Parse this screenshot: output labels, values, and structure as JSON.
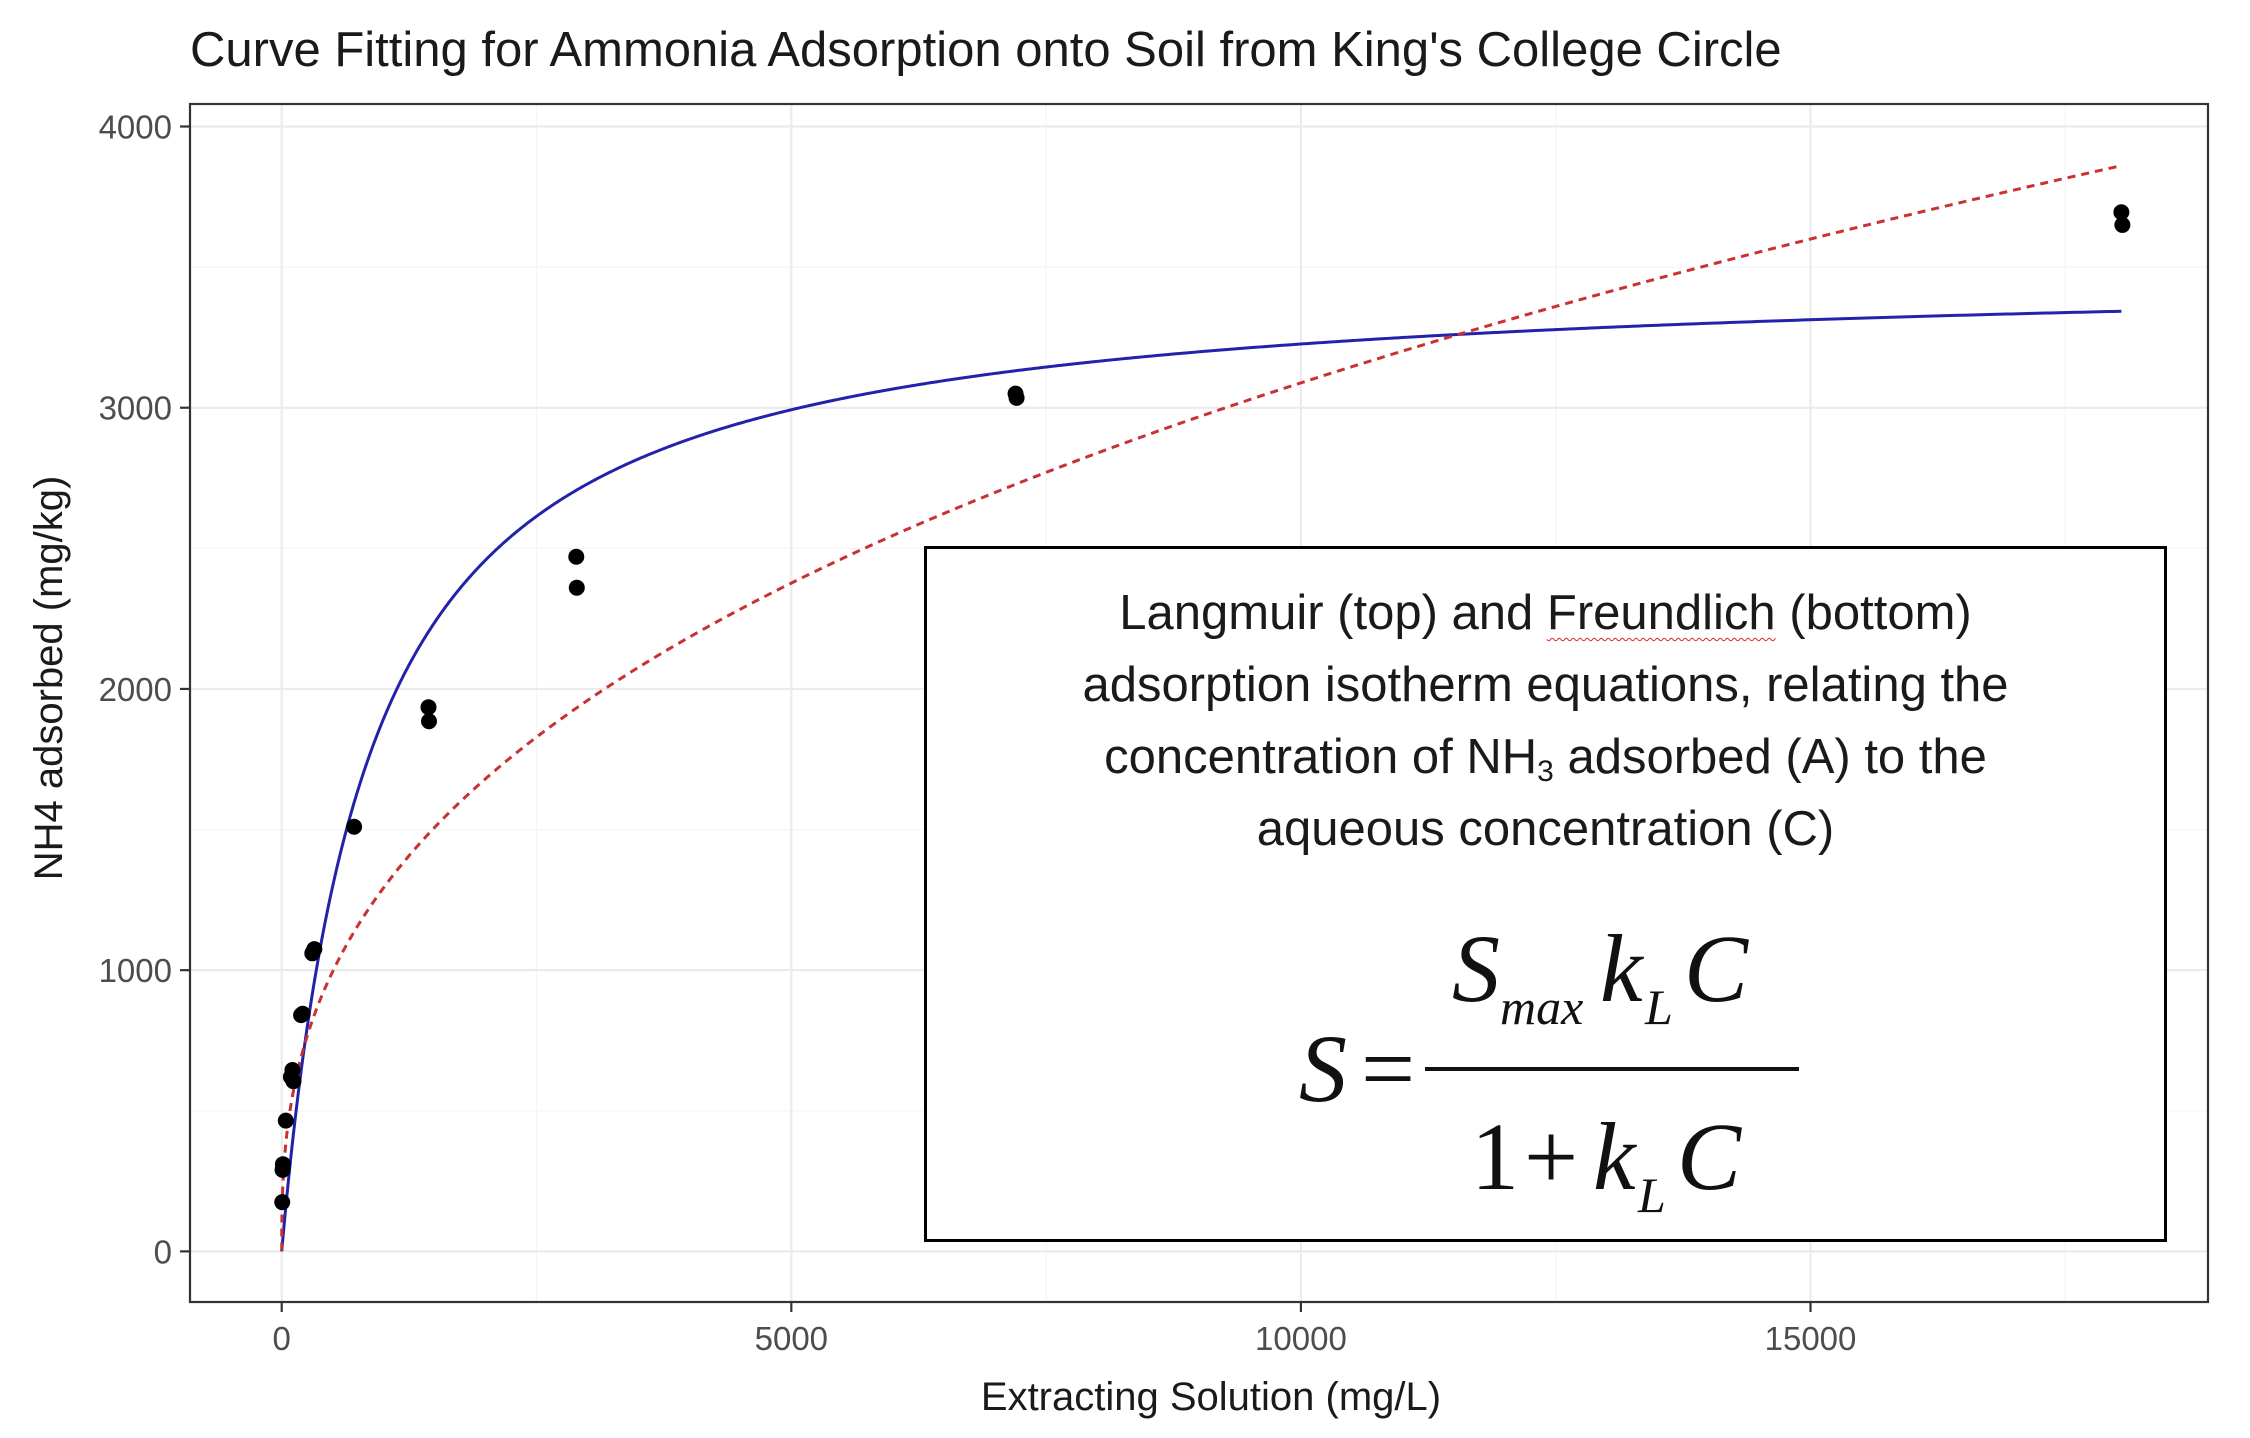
{
  "chart_data": {
    "type": "scatter",
    "title": "Curve Fitting for Ammonia Adsorption onto Soil from King's College Circle",
    "xlabel": "Extracting Solution (mg/L)",
    "ylabel": "NH4 adsorbed (mg/kg)",
    "xlim": [
      -900,
      18900
    ],
    "ylim": [
      -180,
      4080
    ],
    "xticks": [
      0,
      5000,
      10000,
      15000
    ],
    "yticks": [
      0,
      1000,
      2000,
      3000,
      4000
    ],
    "x_tick_labels": [
      "0",
      "5000",
      "10000",
      "15000"
    ],
    "y_tick_labels": [
      "0",
      "1000",
      "2000",
      "3000",
      "4000"
    ],
    "grid": true,
    "points": [
      {
        "x": 5,
        "y": 175
      },
      {
        "x": 8,
        "y": 290
      },
      {
        "x": 12,
        "y": 310
      },
      {
        "x": 40,
        "y": 465
      },
      {
        "x": 90,
        "y": 620
      },
      {
        "x": 105,
        "y": 645
      },
      {
        "x": 115,
        "y": 605
      },
      {
        "x": 190,
        "y": 840
      },
      {
        "x": 205,
        "y": 845
      },
      {
        "x": 300,
        "y": 1060
      },
      {
        "x": 320,
        "y": 1075
      },
      {
        "x": 710,
        "y": 1510
      },
      {
        "x": 1440,
        "y": 1935
      },
      {
        "x": 1445,
        "y": 1885
      },
      {
        "x": 2890,
        "y": 2470
      },
      {
        "x": 2895,
        "y": 2360
      },
      {
        "x": 7200,
        "y": 3050
      },
      {
        "x": 7210,
        "y": 3035
      },
      {
        "x": 18050,
        "y": 3695
      },
      {
        "x": 18060,
        "y": 3650
      }
    ],
    "series": [
      {
        "kind": "langmuir",
        "smax": 3500,
        "kL": 0.00118,
        "color": "#2222aa",
        "style": "solid",
        "x_range": [
          0,
          18050
        ]
      },
      {
        "kind": "freundlich",
        "kF": 95,
        "n": 0.378,
        "color": "#c83232",
        "style": "dashed",
        "x_range": [
          0,
          18050
        ]
      }
    ],
    "annotation": {
      "lines": [
        [
          "Langmuir (top) and ",
          "Freundlich",
          " (bottom)"
        ],
        [
          "adsorption isotherm equations, relating the"
        ],
        [
          "concentration of NH",
          "3",
          " adsorbed (A) to the"
        ],
        [
          "aqueous concentration (C)"
        ]
      ],
      "formula": {
        "lhs": "S",
        "equals": "=",
        "num_s": "S",
        "num_sub_max": "max",
        "num_k": "k",
        "num_sub_l": "L",
        "num_c": "C",
        "den_one": "1",
        "den_plus": "+",
        "den_k": "k",
        "den_sub_l": "L",
        "den_c": "C"
      }
    }
  }
}
